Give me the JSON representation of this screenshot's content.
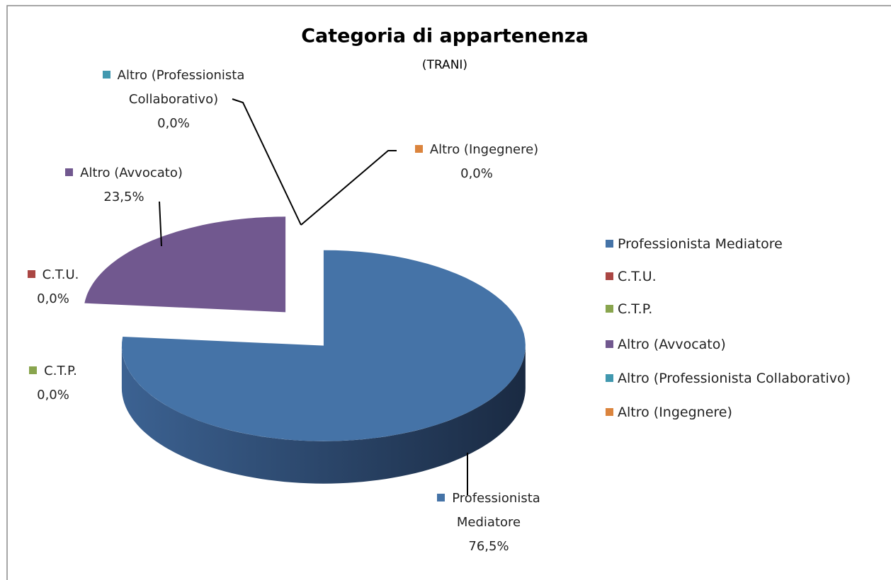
{
  "chart_data": {
    "type": "pie",
    "title": "Categoria di appartenenza",
    "subtitle": "(TRANI)",
    "categories": [
      "Professionista Mediatore",
      "C.T.U.",
      "C.T.P.",
      "Altro (Avvocato)",
      "Altro (Professionista Collaborativo)",
      "Altro (Ingegnere)"
    ],
    "values": [
      76.5,
      0,
      0,
      23.5,
      0,
      0
    ],
    "value_labels": [
      "76,5%",
      "0,0%",
      "0,0%",
      "23,5%",
      "0,0%",
      "0,0%"
    ],
    "colors": [
      "#4573a7",
      "#aa4643",
      "#89a54e",
      "#71588f",
      "#4198af",
      "#db843d"
    ],
    "legend": "right"
  }
}
